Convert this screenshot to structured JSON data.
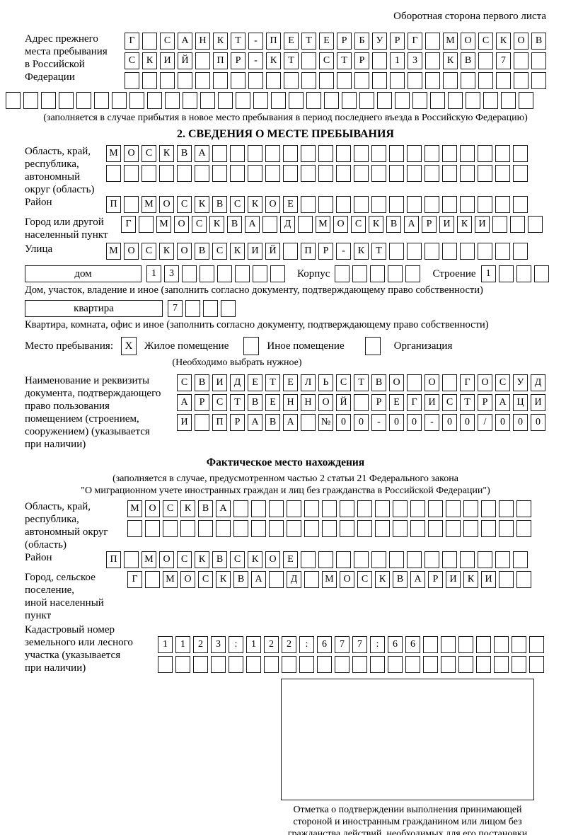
{
  "page": {
    "corner_note": "Оборотная сторона первого листа"
  },
  "prev_address": {
    "label": "Адрес прежнего\nместа пребывания\nв Российской\nФедерации",
    "rows": [
      {
        "count": 24,
        "chars": "Г САНКТ-ПЕТЕРБУРГ МОСКОВ"
      },
      {
        "count": 24,
        "chars": "СКИЙ ПР-КТ СТР 13 КВ 7"
      },
      {
        "count": 24,
        "chars": ""
      },
      {
        "count": 30,
        "chars": ""
      }
    ],
    "note": "(заполняется в случае прибытия в новое место пребывания в период последнего въезда в Российскую Федерацию)"
  },
  "section2": {
    "title": "2. СВЕДЕНИЯ О МЕСТЕ ПРЕБЫВАНИЯ",
    "oblast": {
      "label": "Область, край,\nреспублика,\nавтономный\nокруг (область)",
      "rows": [
        {
          "count": 24,
          "chars": "МОСКВА"
        },
        {
          "count": 24,
          "chars": ""
        }
      ]
    },
    "raion": {
      "label": "Район",
      "rows": [
        {
          "count": 24,
          "chars": "П МОСКВСКОЕ"
        }
      ]
    },
    "gorod": {
      "label": "Город или другой\nнаселенный пункт",
      "rows": [
        {
          "count": 24,
          "chars": "Г МОСКВА Д МОСКВАРИКИ"
        }
      ]
    },
    "ulitsa": {
      "label": "Улица",
      "rows": [
        {
          "count": 24,
          "chars": "МОСКОВСКИЙ ПР-КТ"
        }
      ]
    },
    "dom": {
      "field_label": "дом",
      "number_row": {
        "count": 8,
        "chars": "13"
      },
      "korpus_label": "Корпус",
      "korpus_row": {
        "count": 5,
        "chars": ""
      },
      "stroenie_label": "Строение",
      "stroenie_row": {
        "count": 4,
        "chars": "1"
      },
      "note": "Дом, участок, владение и иное (заполнить согласно документу, подтверждающему право собственности)"
    },
    "kvartira": {
      "field_label": "квартира",
      "number_row": {
        "count": 4,
        "chars": "7"
      },
      "note": "Квартира, комната, офис и иное (заполнить согласно документу, подтверждающему право собственности)"
    },
    "mesto": {
      "label": "Место пребывания:",
      "options": [
        {
          "label": "Жилое помещение",
          "checked": "X"
        },
        {
          "label": "Иное помещение",
          "checked": ""
        },
        {
          "label": "Организация",
          "checked": ""
        }
      ],
      "note": "(Необходимо выбрать нужное)"
    },
    "document": {
      "label": "Наименование и реквизиты\nдокумента, подтверждающего\nправо пользования\nпомещением (строением,\nсооружением) (указывается\nпри наличии)",
      "rows": [
        {
          "count": 21,
          "chars": "СВИДЕТЕЛЬСТВО О ГОСУД"
        },
        {
          "count": 21,
          "chars": "АРСТВЕННОЙ РЕГИСТРАЦИ"
        },
        {
          "count": 21,
          "chars": "И ПРАВА №00-00-00/000"
        }
      ]
    }
  },
  "fact": {
    "title": "Фактическое место нахождения",
    "note_line1": "(заполняется в случае, предусмотренном частью 2 статьи 21 Федерального закона",
    "note_line2": "\"О миграционном учете иностранных граждан и лиц без гражданства в Российской Федерации\")",
    "oblast": {
      "label": "Область, край,\nреспублика,\nавтономный округ\n(область)",
      "rows": [
        {
          "count": 23,
          "chars": "МОСКВА"
        },
        {
          "count": 23,
          "chars": ""
        }
      ]
    },
    "raion": {
      "label": "Район",
      "rows": [
        {
          "count": 24,
          "chars": "П МОСКВСКОЕ"
        }
      ]
    },
    "gorod": {
      "label": "Город, сельское поселение,\nиной населенный пункт",
      "rows": [
        {
          "count": 23,
          "chars": "Г МОСКВА Д МОСКВАРИКИ"
        }
      ]
    },
    "kadastr": {
      "label": "Кадастровый номер\nземельного или лесного\nучастка (указывается\nпри наличии)",
      "rows": [
        {
          "count": 22,
          "chars": "1123:122:677:66"
        },
        {
          "count": 22,
          "chars": ""
        }
      ]
    }
  },
  "footer": {
    "stamp_caption": "Отметка о подтверждении выполнения принимающей\nстороной и иностранным гражданином или лицом без\nгражданства действий, необходимых для его постановки\nна учет по месту пребывания"
  }
}
